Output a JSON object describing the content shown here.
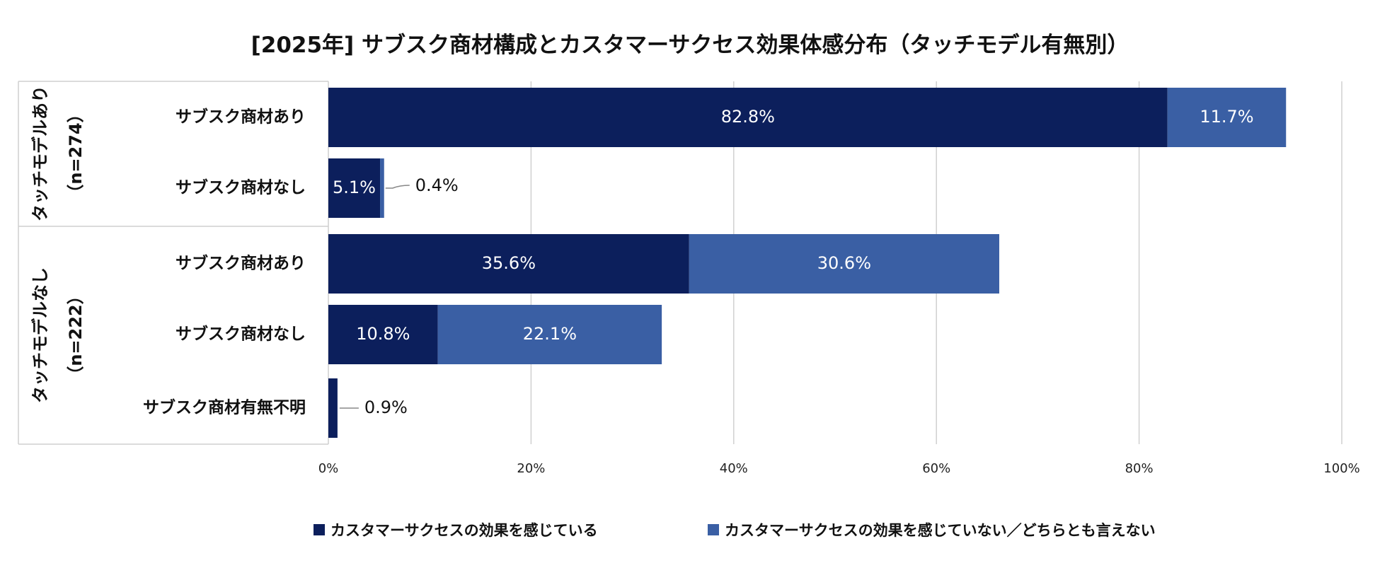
{
  "chart_data": {
    "type": "bar",
    "orientation": "horizontal",
    "stacked": true,
    "title": "[2025年] サブスク商材構成とカスタマーサクセス効果体感分布（タッチモデル有無別）",
    "groups": [
      {
        "label": "タッチモデルあり",
        "n_label": "（n=274）"
      },
      {
        "label": "タッチモデルなし",
        "n_label": "（n=222）"
      }
    ],
    "categories": [
      {
        "group": 0,
        "label": "サブスク商材あり"
      },
      {
        "group": 0,
        "label": "サブスク商材なし"
      },
      {
        "group": 1,
        "label": "サブスク商材あり"
      },
      {
        "group": 1,
        "label": "サブスク商材なし"
      },
      {
        "group": 1,
        "label": "サブスク商材有無不明"
      }
    ],
    "series": [
      {
        "name": "カスタマーサクセスの効果を感じている",
        "color": "#0c1f5c",
        "values": [
          82.8,
          5.1,
          35.6,
          10.8,
          0.9
        ],
        "labels": [
          "82.8%",
          "5.1%",
          "35.6%",
          "10.8%",
          "0.9%"
        ]
      },
      {
        "name": "カスタマーサクセスの効果を感じていない／どちらとも言えない",
        "color": "#3a5fa4",
        "values": [
          11.7,
          0.4,
          30.6,
          22.1,
          0
        ],
        "labels": [
          "11.7%",
          "0.4%",
          "30.6%",
          "22.1%",
          ""
        ]
      }
    ],
    "xlim": [
      0,
      100
    ],
    "xticks": [
      "0%",
      "20%",
      "40%",
      "60%",
      "80%",
      "100%"
    ],
    "grid": true,
    "legend_position": "bottom"
  }
}
